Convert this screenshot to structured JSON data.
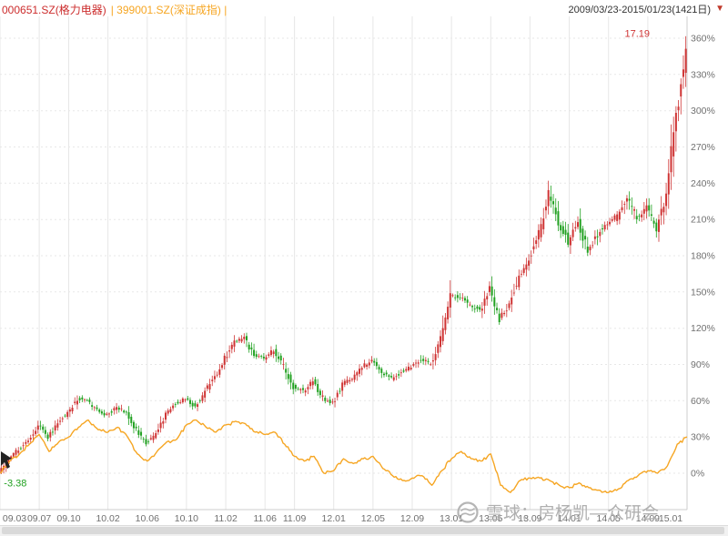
{
  "header": {
    "stock_label": "000651.SZ(格力电器)",
    "index_label": "| 399001.SZ(深证成指) |",
    "date_range": "2009/03/23-2015/01/23(1421日)",
    "dropdown_icon": "▼"
  },
  "watermark": {
    "text": "雪球：房杨凯—众研会"
  },
  "chart_data": {
    "type": "candlestick+line",
    "title": "",
    "x_axis": {
      "unit": "yy.mm",
      "ticks": [
        {
          "month": 0,
          "label": "09.03"
        },
        {
          "month": 4,
          "label": "09.07"
        },
        {
          "month": 7,
          "label": "09.10"
        },
        {
          "month": 11,
          "label": "10.02"
        },
        {
          "month": 15,
          "label": "10.06"
        },
        {
          "month": 19,
          "label": "10.10"
        },
        {
          "month": 23,
          "label": "11.02"
        },
        {
          "month": 27,
          "label": "11.06"
        },
        {
          "month": 30,
          "label": "11.09"
        },
        {
          "month": 34,
          "label": "12.01"
        },
        {
          "month": 38,
          "label": "12.05"
        },
        {
          "month": 42,
          "label": "12.09"
        },
        {
          "month": 46,
          "label": "13.01"
        },
        {
          "month": 50,
          "label": "13.05"
        },
        {
          "month": 54,
          "label": "13.09"
        },
        {
          "month": 58,
          "label": "14.01"
        },
        {
          "month": 62,
          "label": "14.05"
        },
        {
          "month": 66,
          "label": "14.09"
        },
        {
          "month": 70,
          "label": "15.01"
        }
      ]
    },
    "y_axis": {
      "unit": "%",
      "range": [
        -30,
        370
      ],
      "ticks": [
        {
          "value": 360,
          "label": "360%"
        },
        {
          "value": 330,
          "label": "330%"
        },
        {
          "value": 300,
          "label": "300%"
        },
        {
          "value": 270,
          "label": "270%"
        },
        {
          "value": 240,
          "label": "240%"
        },
        {
          "value": 210,
          "label": "210%"
        },
        {
          "value": 180,
          "label": "180%"
        },
        {
          "value": 150,
          "label": "150%"
        },
        {
          "value": 120,
          "label": "120%"
        },
        {
          "value": 90,
          "label": "90%"
        },
        {
          "value": 60,
          "label": "60%"
        },
        {
          "value": 30,
          "label": "30%"
        },
        {
          "value": 0,
          "label": "0%"
        }
      ]
    },
    "series": [
      {
        "name": "000651.SZ(格力电器)",
        "style": "candlestick",
        "x_unit": "months since 2009.03",
        "monthly_pct": [
          0,
          12,
          20,
          28,
          40,
          30,
          42,
          50,
          62,
          60,
          52,
          48,
          55,
          50,
          35,
          25,
          32,
          50,
          58,
          62,
          55,
          68,
          80,
          95,
          108,
          112,
          98,
          95,
          102,
          88,
          72,
          68,
          76,
          62,
          58,
          74,
          78,
          88,
          94,
          84,
          78,
          84,
          88,
          95,
          90,
          112,
          148,
          145,
          138,
          135,
          152,
          128,
          140,
          162,
          178,
          198,
          232,
          208,
          192,
          208,
          185,
          198,
          208,
          212,
          228,
          212,
          220,
          202,
          232,
          298,
          345
        ]
      },
      {
        "name": "399001.SZ(深证成指)",
        "style": "line",
        "color": "#f6a623",
        "x_unit": "months since 2009.03",
        "monthly_pct": [
          0,
          10,
          16,
          24,
          32,
          18,
          26,
          30,
          38,
          44,
          36,
          34,
          38,
          30,
          16,
          10,
          18,
          26,
          28,
          40,
          44,
          38,
          34,
          40,
          43,
          41,
          34,
          32,
          34,
          24,
          14,
          10,
          14,
          0,
          2,
          12,
          8,
          12,
          14,
          4,
          -2,
          -6,
          -4,
          -2,
          -10,
          2,
          12,
          18,
          12,
          10,
          16,
          -10,
          -16,
          -6,
          -4,
          -4,
          -6,
          -10,
          -12,
          -8,
          -12,
          -14,
          -16,
          -13,
          -6,
          -2,
          2,
          0,
          6,
          24,
          30
        ]
      }
    ],
    "annotations": [
      {
        "text": "17.19",
        "month": 66.2,
        "value": 361,
        "color": "#cf3434",
        "anchor": "end"
      },
      {
        "text": "-3.38",
        "month": 0.4,
        "value": -11,
        "color": "#21a121",
        "anchor": "start"
      }
    ],
    "colors": {
      "up": "#cf3434",
      "down": "#21a121",
      "index_line": "#f6a623",
      "grid": "#e7e7e7",
      "border": "#cccccc",
      "axis_text": "#707070"
    }
  }
}
